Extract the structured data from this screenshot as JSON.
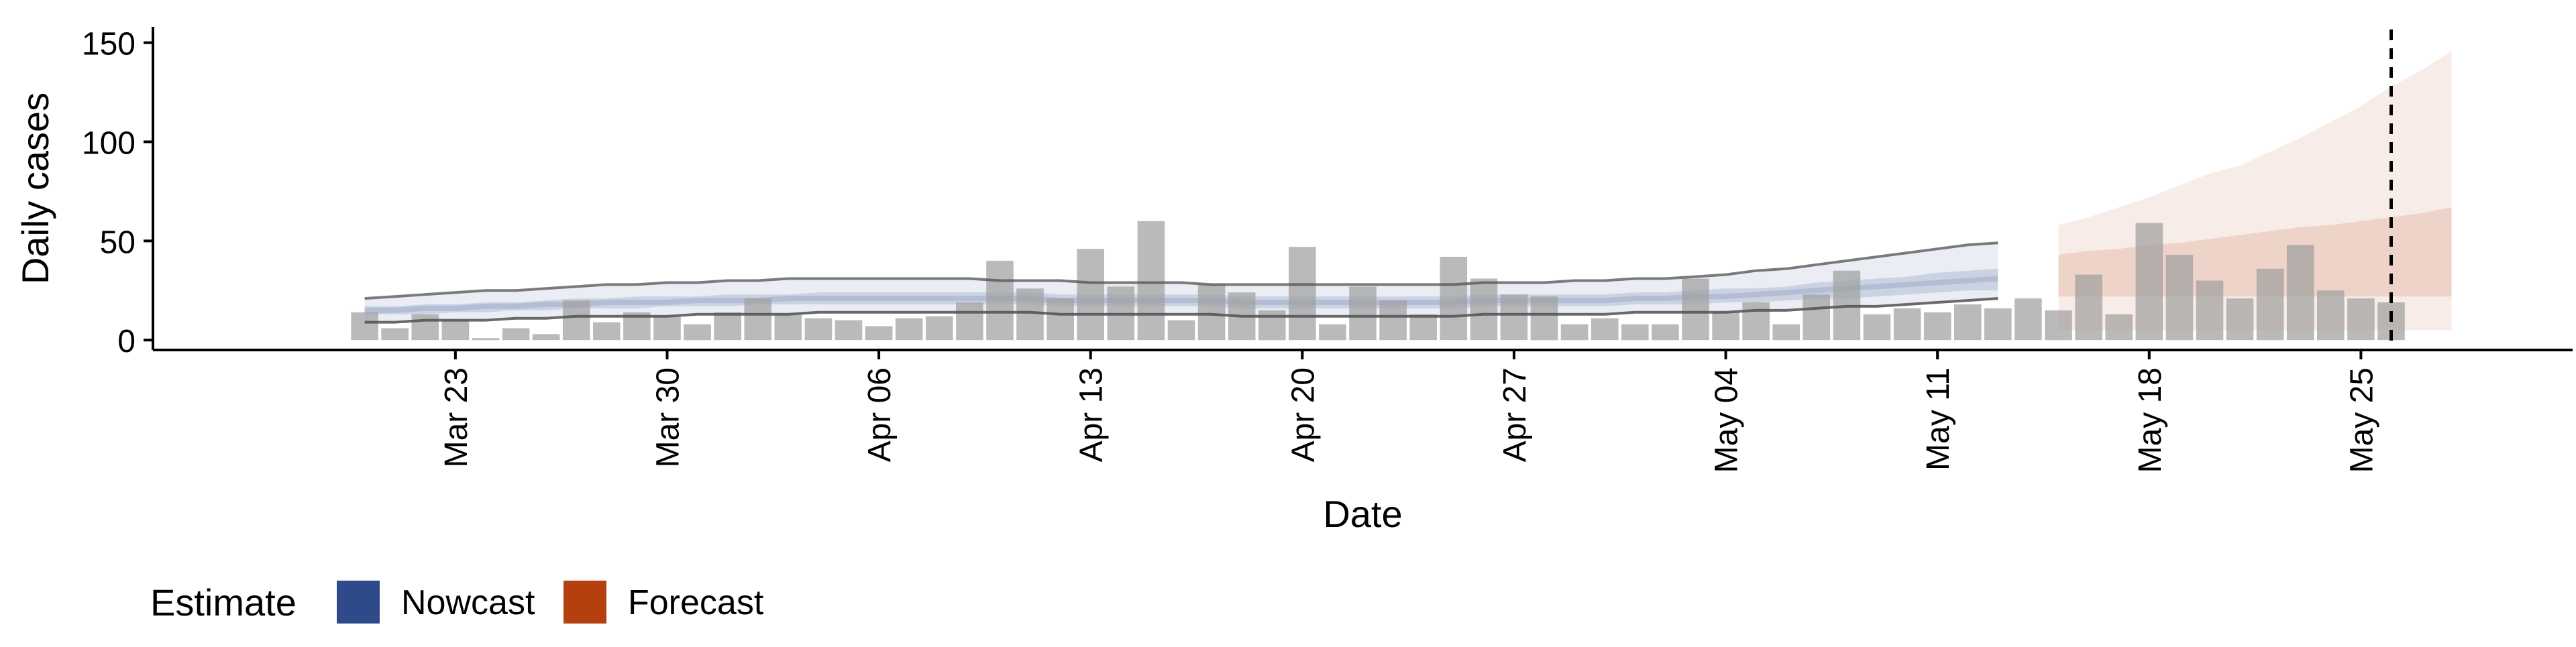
{
  "chart_data": {
    "type": "bar",
    "xlabel": "Date",
    "ylabel": "Daily cases",
    "ylim": [
      -5,
      158
    ],
    "yticks": [
      0,
      50,
      100,
      150
    ],
    "x_tick_labels": [
      {
        "date": "2020-03-23",
        "label": "Mar 23"
      },
      {
        "date": "2020-03-30",
        "label": "Mar 30"
      },
      {
        "date": "2020-04-06",
        "label": "Apr 06"
      },
      {
        "date": "2020-04-13",
        "label": "Apr 13"
      },
      {
        "date": "2020-04-20",
        "label": "Apr 20"
      },
      {
        "date": "2020-04-27",
        "label": "Apr 27"
      },
      {
        "date": "2020-05-04",
        "label": "May 04"
      },
      {
        "date": "2020-05-11",
        "label": "May 11"
      },
      {
        "date": "2020-05-18",
        "label": "May 18"
      },
      {
        "date": "2020-05-25",
        "label": "May 25"
      }
    ],
    "xlim": [
      "2020-03-13",
      "2020-06-01"
    ],
    "grid": false,
    "reference_line": {
      "date": "2020-05-26",
      "style": "dashed"
    },
    "observed": {
      "start_date": "2020-03-20",
      "values": [
        14,
        6,
        13,
        10,
        1,
        6,
        3,
        20,
        9,
        14,
        12,
        8,
        14,
        21,
        13,
        11,
        10,
        7,
        11,
        12,
        19,
        40,
        26,
        21,
        46,
        27,
        60,
        10,
        28,
        24,
        15,
        47,
        8,
        27,
        20,
        13,
        42,
        31,
        23,
        22,
        8,
        11,
        8,
        8,
        31,
        14,
        19,
        8,
        23,
        35,
        13,
        16,
        14,
        18,
        16,
        21,
        15,
        33,
        13,
        59,
        43,
        30,
        21,
        36,
        48,
        25,
        21,
        19
      ]
    },
    "nowcast": {
      "start_date": "2020-03-20",
      "median": [
        15,
        15,
        16,
        16,
        17,
        17,
        18,
        18,
        19,
        19,
        19,
        20,
        20,
        20,
        21,
        21,
        21,
        21,
        21,
        21,
        21,
        21,
        21,
        20,
        20,
        20,
        20,
        20,
        20,
        19,
        19,
        19,
        19,
        19,
        19,
        19,
        19,
        20,
        20,
        20,
        20,
        20,
        21,
        21,
        22,
        22,
        23,
        24,
        25,
        26,
        27,
        28,
        29,
        30,
        31
      ],
      "lower_50": [
        13,
        13,
        13,
        14,
        14,
        15,
        15,
        16,
        16,
        16,
        17,
        17,
        17,
        18,
        18,
        18,
        18,
        18,
        18,
        18,
        18,
        18,
        18,
        17,
        17,
        17,
        17,
        17,
        17,
        16,
        16,
        16,
        16,
        16,
        16,
        16,
        16,
        17,
        17,
        17,
        17,
        17,
        18,
        18,
        18,
        19,
        19,
        20,
        21,
        21,
        22,
        23,
        24,
        25,
        25
      ],
      "upper_50": [
        17,
        17,
        18,
        18,
        19,
        19,
        20,
        21,
        21,
        22,
        22,
        22,
        23,
        23,
        23,
        24,
        24,
        24,
        24,
        24,
        24,
        24,
        24,
        23,
        23,
        23,
        23,
        23,
        23,
        22,
        22,
        22,
        22,
        22,
        22,
        22,
        22,
        23,
        23,
        23,
        23,
        23,
        24,
        24,
        25,
        26,
        26,
        27,
        29,
        30,
        31,
        32,
        34,
        35,
        36
      ],
      "lower_90": [
        9,
        9,
        10,
        10,
        10,
        11,
        11,
        12,
        12,
        12,
        12,
        13,
        13,
        13,
        13,
        14,
        14,
        14,
        14,
        14,
        14,
        14,
        14,
        13,
        13,
        13,
        13,
        13,
        13,
        12,
        12,
        12,
        12,
        12,
        12,
        12,
        12,
        13,
        13,
        13,
        13,
        13,
        14,
        14,
        14,
        14,
        15,
        15,
        16,
        17,
        17,
        18,
        19,
        20,
        21
      ],
      "upper_90": [
        21,
        22,
        23,
        24,
        25,
        25,
        26,
        27,
        28,
        28,
        29,
        29,
        30,
        30,
        31,
        31,
        31,
        31,
        31,
        31,
        31,
        30,
        30,
        30,
        29,
        29,
        29,
        29,
        28,
        28,
        28,
        28,
        28,
        28,
        28,
        28,
        28,
        29,
        29,
        29,
        30,
        30,
        31,
        31,
        32,
        33,
        35,
        36,
        38,
        40,
        42,
        44,
        46,
        48,
        49
      ]
    },
    "forecast": {
      "start_date": "2020-05-15",
      "median": [
        32,
        32,
        33,
        33,
        34,
        34,
        35,
        35,
        36,
        36,
        37,
        37,
        38,
        39
      ],
      "lower_50": [
        22,
        22,
        22,
        22,
        22,
        22,
        22,
        22,
        22,
        22,
        22,
        22,
        22,
        22
      ],
      "upper_50": [
        43,
        45,
        46,
        48,
        49,
        51,
        53,
        55,
        57,
        58,
        60,
        62,
        64,
        67
      ],
      "lower_90": [
        5,
        5,
        5,
        5,
        5,
        5,
        5,
        5,
        5,
        5,
        5,
        5,
        5,
        5
      ],
      "upper_90": [
        58,
        62,
        67,
        72,
        78,
        84,
        88,
        95,
        102,
        110,
        118,
        128,
        136,
        146
      ]
    },
    "legend": {
      "placement": "bottom-left",
      "title": "Estimate",
      "items": [
        {
          "label": "Nowcast",
          "color": "#2E4A8B"
        },
        {
          "label": "Forecast",
          "color": "#B5400F"
        }
      ]
    },
    "colors": {
      "bar": "#A0A0A0",
      "nowcast": "#2E4A8B",
      "forecast": "#B5400F",
      "outline": "#505050"
    }
  }
}
